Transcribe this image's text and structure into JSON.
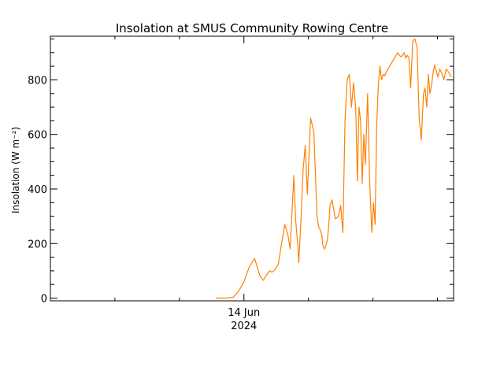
{
  "chart_data": {
    "type": "line",
    "title": "Insolation at SMUS Community Rowing Centre",
    "ylabel": "Insolation (W m⁻²)",
    "xlabel": "",
    "x_tick_labels": [
      {
        "x": 0,
        "line1": "14 Jun",
        "line2": "2024"
      }
    ],
    "x_unit": "hours relative to 14 Jun 2024 00:00",
    "xlim": [
      -18,
      19.5
    ],
    "ylim": [
      -10,
      960
    ],
    "y_ticks": [
      0,
      200,
      400,
      600,
      800
    ],
    "grid": false,
    "series": [
      {
        "name": "Insolation",
        "color": "#ff8000",
        "x": [
          -2.6,
          -1.6,
          -1.0,
          -0.5,
          0,
          0.5,
          1.0,
          1.5,
          1.8,
          2.1,
          2.4,
          2.6,
          2.9,
          3.2,
          3.5,
          3.8,
          4.1,
          4.3,
          4.5,
          4.65,
          4.8,
          5.0,
          5.1,
          5.3,
          5.5,
          5.7,
          5.9,
          6.2,
          6.5,
          6.8,
          6.95,
          7.1,
          7.25,
          7.35,
          7.5,
          7.6,
          7.75,
          7.9,
          8.0,
          8.2,
          8.5,
          8.8,
          9.0,
          9.2,
          9.4,
          9.6,
          9.8,
          10.0,
          10.2,
          10.4,
          10.55,
          10.7,
          10.85,
          11.0,
          11.15,
          11.3,
          11.5,
          11.7,
          11.9,
          12.05,
          12.2,
          12.35,
          12.5,
          12.65,
          12.8,
          12.95,
          13.1,
          13.25,
          13.4,
          13.55,
          13.7,
          13.85,
          14.0,
          14.15,
          14.3,
          14.45,
          14.6,
          14.75,
          14.9,
          15.05,
          15.2,
          15.35,
          15.5,
          15.7,
          15.9,
          16.1,
          16.3,
          16.5,
          16.7,
          16.85,
          17.0,
          17.15,
          17.3,
          17.45,
          17.6,
          17.75,
          17.9,
          18.05,
          18.2,
          18.4,
          18.6,
          18.8,
          19.0,
          19.3
        ],
        "values": [
          0,
          0,
          3,
          25,
          60,
          115,
          145,
          80,
          65,
          85,
          100,
          95,
          105,
          125,
          200,
          270,
          230,
          180,
          340,
          450,
          290,
          200,
          130,
          280,
          470,
          560,
          380,
          660,
          610,
          300,
          260,
          250,
          230,
          190,
          180,
          190,
          210,
          270,
          340,
          360,
          290,
          300,
          340,
          240,
          650,
          800,
          820,
          700,
          790,
          690,
          430,
          700,
          650,
          420,
          600,
          490,
          750,
          420,
          240,
          350,
          270,
          640,
          780,
          850,
          800,
          820,
          815,
          830,
          840,
          850,
          860,
          870,
          880,
          890,
          900,
          890,
          885,
          890,
          900,
          880,
          890,
          880,
          770,
          940,
          950,
          920,
          660,
          580,
          750,
          770,
          700,
          820,
          750,
          780,
          830,
          855,
          830,
          810,
          840,
          825,
          800,
          840,
          830,
          810
        ]
      }
    ]
  }
}
